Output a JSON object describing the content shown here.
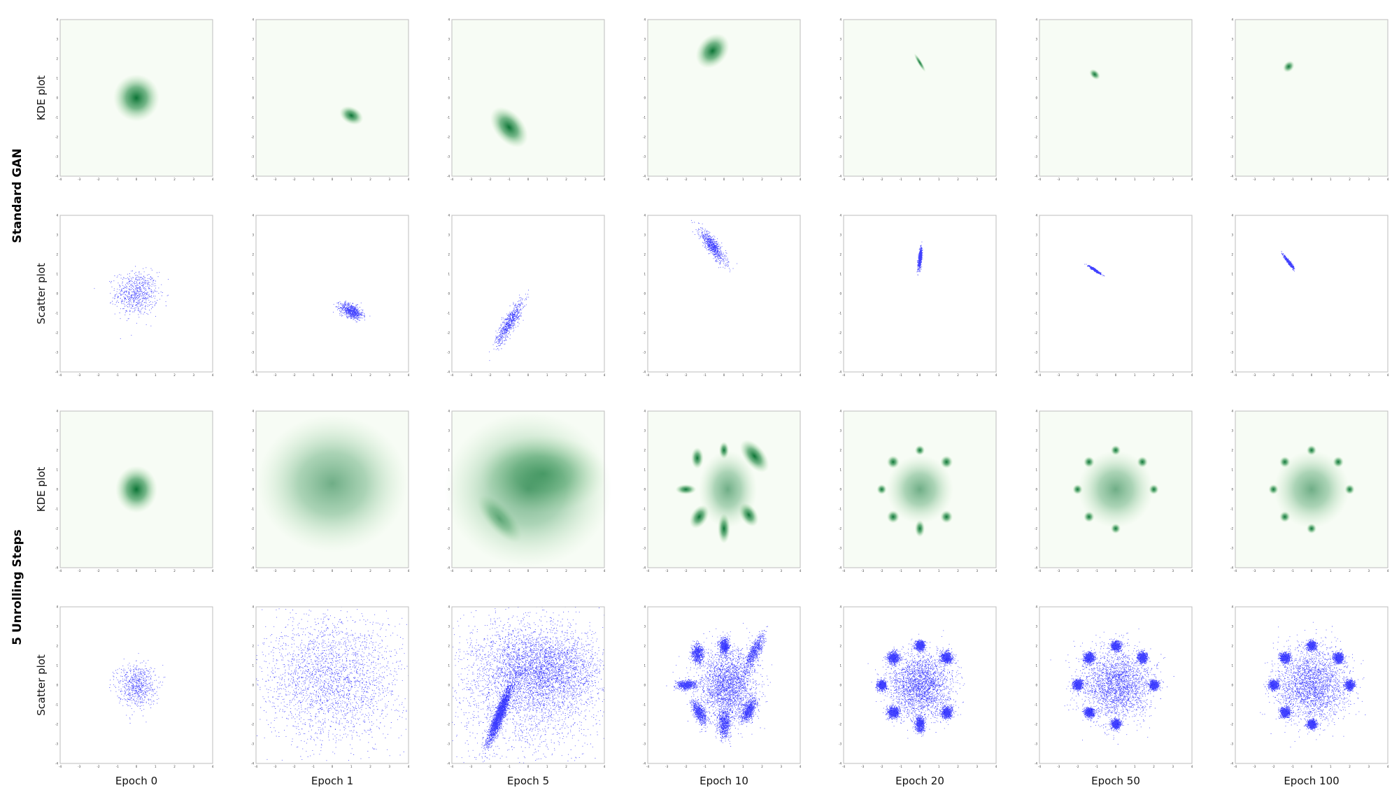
{
  "chart_data": {
    "type": "scatter",
    "layout": "grid of KDE and scatter panels",
    "groups": [
      {
        "label": "Standard GAN",
        "rows": [
          "KDE plot",
          "Scatter plot"
        ]
      },
      {
        "label": "5 Unrolling Steps",
        "rows": [
          "KDE plot",
          "Scatter plot"
        ]
      }
    ],
    "columns": [
      "Epoch 0",
      "Epoch 1",
      "Epoch 5",
      "Epoch 10",
      "Epoch 20",
      "Epoch 50",
      "Epoch 100"
    ],
    "xlim": [
      -4,
      4
    ],
    "ylim": [
      -4,
      4
    ],
    "ticks": [
      -4,
      -3,
      -2,
      -1,
      0,
      1,
      2,
      3,
      4
    ],
    "colors": {
      "kde": "#006d2c",
      "kde_background": "#f7fcf5",
      "scatter": "#0000ff"
    },
    "distributions": {
      "standard_gan": [
        {
          "epoch": 0,
          "modes": [
            {
              "mean": [
                0.0,
                0.0
              ],
              "sd": [
                0.55,
                0.55
              ],
              "corr": 0.0
            }
          ]
        },
        {
          "epoch": 1,
          "modes": [
            {
              "mean": [
                1.0,
                -0.9
              ],
              "sd": [
                0.3,
                0.2
              ],
              "corr": -0.5
            }
          ]
        },
        {
          "epoch": 5,
          "modes": [
            {
              "mean": [
                -1.0,
                -1.5
              ],
              "sd": [
                0.35,
                0.55
              ],
              "corr": 0.85
            }
          ]
        },
        {
          "epoch": 10,
          "modes": [
            {
              "mean": [
                -0.6,
                2.4
              ],
              "sd": [
                0.35,
                0.45
              ],
              "corr": -0.85
            }
          ]
        },
        {
          "epoch": 20,
          "modes": [
            {
              "mean": [
                0.0,
                1.8
              ],
              "sd": [
                0.05,
                0.25
              ],
              "corr": 0.6
            }
          ]
        },
        {
          "epoch": 50,
          "modes": [
            {
              "mean": [
                -1.1,
                1.2
              ],
              "sd": [
                0.15,
                0.1
              ],
              "corr": -0.95
            }
          ]
        },
        {
          "epoch": 100,
          "modes": [
            {
              "mean": [
                -1.2,
                1.6
              ],
              "sd": [
                0.12,
                0.15
              ],
              "corr": -0.95
            }
          ]
        }
      ],
      "unrolled_5": [
        {
          "epoch": 0,
          "modes": [
            {
              "mean": [
                0.0,
                0.0
              ],
              "sd": [
                0.5,
                0.55
              ],
              "corr": 0.0
            }
          ]
        },
        {
          "epoch": 1,
          "modes": [
            {
              "mean": [
                0.0,
                0.3
              ],
              "sd": [
                1.8,
                1.6
              ],
              "corr": 0.0
            }
          ]
        },
        {
          "epoch": 5,
          "modes": [
            {
              "mean": [
                -1.5,
                -1.5
              ],
              "sd": [
                0.3,
                0.7
              ],
              "corr": 0.9
            },
            {
              "mean": [
                0.8,
                0.8
              ],
              "sd": [
                1.5,
                0.9
              ],
              "corr": 0.0
            },
            {
              "mean": [
                0.0,
                0.0
              ],
              "sd": [
                2.0,
                1.8
              ],
              "corr": 0.0
            }
          ]
        },
        {
          "epoch": 10,
          "modes": [
            {
              "mean": [
                -1.4,
                1.6
              ],
              "sd": [
                0.15,
                0.25
              ],
              "corr": 0.0
            },
            {
              "mean": [
                0.0,
                2.0
              ],
              "sd": [
                0.12,
                0.2
              ],
              "corr": 0.0
            },
            {
              "mean": [
                1.6,
                1.7
              ],
              "sd": [
                0.25,
                0.45
              ],
              "corr": 0.8
            },
            {
              "mean": [
                -2.0,
                0.0
              ],
              "sd": [
                0.25,
                0.12
              ],
              "corr": 0.0
            },
            {
              "mean": [
                -1.3,
                -1.4
              ],
              "sd": [
                0.2,
                0.3
              ],
              "corr": -0.6
            },
            {
              "mean": [
                0.0,
                -2.0
              ],
              "sd": [
                0.15,
                0.35
              ],
              "corr": 0.0
            },
            {
              "mean": [
                1.3,
                -1.3
              ],
              "sd": [
                0.2,
                0.3
              ],
              "corr": 0.6
            },
            {
              "mean": [
                0.2,
                0.0
              ],
              "sd": [
                0.7,
                0.9
              ],
              "corr": 0.0
            }
          ]
        },
        {
          "epoch": 20,
          "modes": [
            {
              "mean": [
                -1.4,
                1.4
              ],
              "sd": [
                0.15,
                0.15
              ],
              "corr": 0.0
            },
            {
              "mean": [
                0.0,
                2.0
              ],
              "sd": [
                0.12,
                0.12
              ],
              "corr": 0.0
            },
            {
              "mean": [
                1.4,
                1.4
              ],
              "sd": [
                0.15,
                0.15
              ],
              "corr": 0.0
            },
            {
              "mean": [
                -2.0,
                0.0
              ],
              "sd": [
                0.12,
                0.12
              ],
              "corr": 0.0
            },
            {
              "mean": [
                -1.4,
                -1.4
              ],
              "sd": [
                0.15,
                0.15
              ],
              "corr": 0.0
            },
            {
              "mean": [
                0.0,
                -2.0
              ],
              "sd": [
                0.12,
                0.2
              ],
              "corr": 0.0
            },
            {
              "mean": [
                1.4,
                -1.4
              ],
              "sd": [
                0.15,
                0.15
              ],
              "corr": 0.0
            },
            {
              "mean": [
                0.0,
                0.0
              ],
              "sd": [
                0.8,
                0.8
              ],
              "corr": 0.0
            }
          ]
        },
        {
          "epoch": 50,
          "modes": [
            {
              "mean": [
                -1.4,
                1.4
              ],
              "sd": [
                0.13,
                0.13
              ],
              "corr": 0.0
            },
            {
              "mean": [
                0.0,
                2.0
              ],
              "sd": [
                0.12,
                0.12
              ],
              "corr": 0.0
            },
            {
              "mean": [
                1.4,
                1.4
              ],
              "sd": [
                0.13,
                0.13
              ],
              "corr": 0.0
            },
            {
              "mean": [
                -2.0,
                0.0
              ],
              "sd": [
                0.12,
                0.12
              ],
              "corr": 0.0
            },
            {
              "mean": [
                2.0,
                0.0
              ],
              "sd": [
                0.12,
                0.12
              ],
              "corr": 0.0
            },
            {
              "mean": [
                -1.4,
                -1.4
              ],
              "sd": [
                0.13,
                0.13
              ],
              "corr": 0.0
            },
            {
              "mean": [
                0.0,
                -2.0
              ],
              "sd": [
                0.12,
                0.12
              ],
              "corr": 0.0
            },
            {
              "mean": [
                0.0,
                0.0
              ],
              "sd": [
                0.9,
                0.9
              ],
              "corr": 0.0
            }
          ]
        },
        {
          "epoch": 100,
          "modes": [
            {
              "mean": [
                -1.4,
                1.4
              ],
              "sd": [
                0.13,
                0.13
              ],
              "corr": 0.0
            },
            {
              "mean": [
                0.0,
                2.0
              ],
              "sd": [
                0.12,
                0.12
              ],
              "corr": 0.0
            },
            {
              "mean": [
                1.4,
                1.4
              ],
              "sd": [
                0.13,
                0.13
              ],
              "corr": 0.0
            },
            {
              "mean": [
                -2.0,
                0.0
              ],
              "sd": [
                0.12,
                0.12
              ],
              "corr": 0.0
            },
            {
              "mean": [
                2.0,
                0.0
              ],
              "sd": [
                0.12,
                0.12
              ],
              "corr": 0.0
            },
            {
              "mean": [
                -1.4,
                -1.4
              ],
              "sd": [
                0.13,
                0.13
              ],
              "corr": 0.0
            },
            {
              "mean": [
                0.0,
                -2.0
              ],
              "sd": [
                0.12,
                0.12
              ],
              "corr": 0.0
            },
            {
              "mean": [
                0.0,
                0.0
              ],
              "sd": [
                0.9,
                0.9
              ],
              "corr": 0.0
            }
          ]
        }
      ]
    }
  }
}
